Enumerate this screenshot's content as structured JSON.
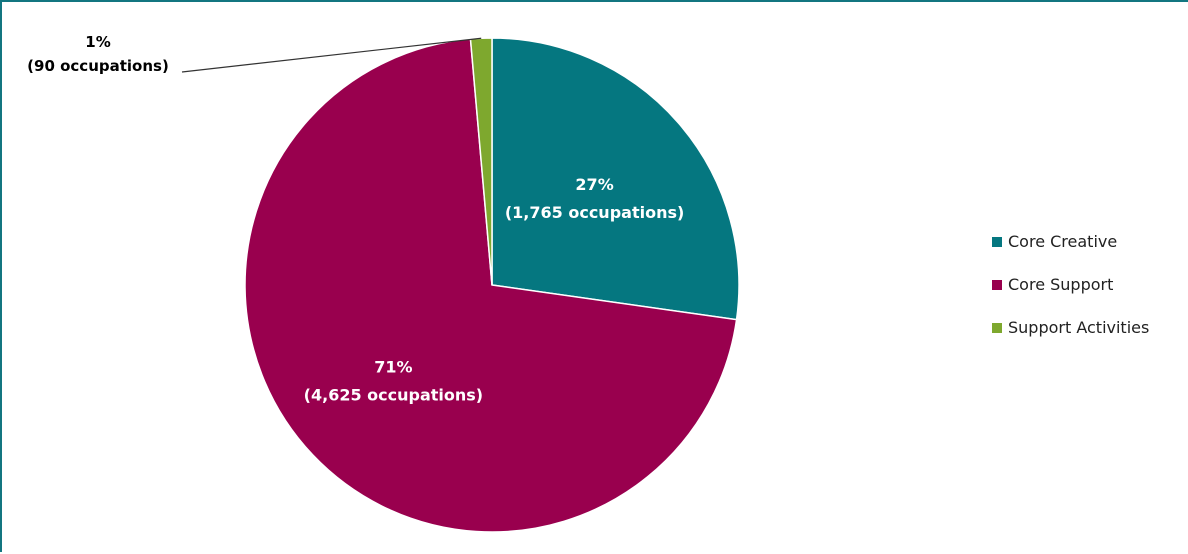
{
  "chart_data": {
    "type": "pie",
    "slices": [
      {
        "name": "Core Creative",
        "percent": 27,
        "value": 1765,
        "label_pct": "27%",
        "label_detail": "(1,765 occupations)",
        "color": "#057780"
      },
      {
        "name": "Core Support",
        "percent": 71,
        "value": 4625,
        "label_pct": "71%",
        "label_detail": "(4,625 occupations)",
        "color": "#99004E"
      },
      {
        "name": "Support Activities",
        "percent": 1,
        "value": 90,
        "label_pct": "1%",
        "label_detail": "(90 occupations)",
        "color": "#7EA82E"
      }
    ],
    "legend": {
      "position": "right",
      "entries": [
        "Core Creative",
        "Core Support",
        "Support Activities"
      ]
    }
  }
}
